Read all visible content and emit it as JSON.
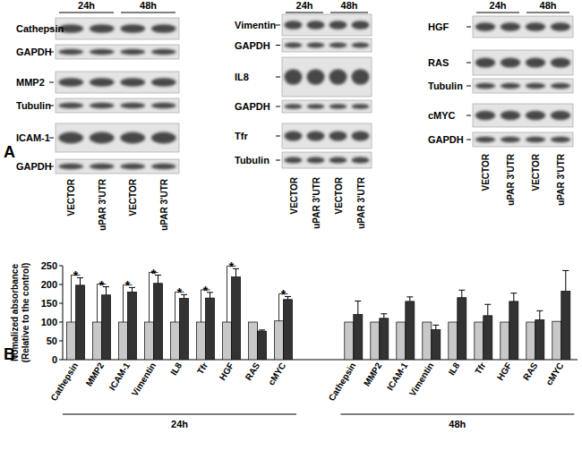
{
  "panel_a": {
    "label": "A",
    "columns": [
      {
        "times": [
          "24h",
          "48h"
        ],
        "rows": [
          "Cathepsin",
          "GAPDH",
          "MMP2",
          "Tubulin",
          "ICAM-1",
          "GAPDH"
        ],
        "lanes": [
          "VECTOR",
          "uPAR 3'UTR",
          "VECTOR",
          "uPAR 3'UTR"
        ]
      },
      {
        "times": [
          "24h",
          "48h"
        ],
        "rows": [
          "Vimentin",
          "GAPDH",
          "IL8",
          "GAPDH",
          "Tfr",
          "Tubulin"
        ],
        "lanes": [
          "VECTOR",
          "uPAR 3'UTR",
          "VECTOR",
          "uPAR 3'UTR"
        ]
      },
      {
        "times": [
          "24h",
          "48h"
        ],
        "rows": [
          "HGF",
          "RAS",
          "Tubulin",
          "cMYC",
          "GAPDH"
        ],
        "lanes": [
          "VECTOR",
          "uPAR 3'UTR",
          "VECTOR",
          "uPAR 3'UTR"
        ]
      }
    ]
  },
  "panel_b": {
    "label": "B"
  },
  "chart_data": {
    "type": "bar",
    "y_label": [
      "Nomalized absorbance",
      "(Relative to the control)"
    ],
    "categories": [
      "Cathepsin",
      "MMP2",
      "ICAM-1",
      "Vimentin",
      "IL8",
      "Tfr",
      "HGF",
      "RAS",
      "cMYC",
      "Cathepsin",
      "MMP2",
      "ICAM-1",
      "Vimentin",
      "IL8",
      "Tfr",
      "HGF",
      "RAS",
      "cMYC"
    ],
    "groups": [
      {
        "label": "24h",
        "count": 9
      },
      {
        "label": "48h",
        "count": 9
      }
    ],
    "series": [
      {
        "color": "#c8c8c8",
        "values": [
          100,
          100,
          100,
          100,
          100,
          100,
          100,
          100,
          103,
          100,
          100,
          100,
          100,
          100,
          100,
          100,
          100,
          102
        ]
      },
      {
        "color": "#333333",
        "values": [
          198,
          172,
          180,
          203,
          163,
          164,
          220,
          76,
          160,
          120,
          110,
          155,
          80,
          165,
          117,
          155,
          106,
          182
        ],
        "errors": [
          20,
          22,
          12,
          22,
          10,
          15,
          22,
          3,
          8,
          36,
          12,
          12,
          12,
          20,
          30,
          22,
          24,
          55
        ]
      }
    ],
    "annotations": [
      {
        "text": "*",
        "category": 0
      },
      {
        "text": "*",
        "category": 1
      },
      {
        "text": "*",
        "category": 2
      },
      {
        "text": "*",
        "category": 3
      },
      {
        "text": "*",
        "category": 4
      },
      {
        "text": "*",
        "category": 5
      },
      {
        "text": "*",
        "category": 6
      },
      {
        "text": "*",
        "category": 8
      }
    ],
    "ylim": [
      0,
      250
    ],
    "yticks": [
      0,
      50,
      100,
      150,
      200,
      250
    ],
    "grid": false
  }
}
